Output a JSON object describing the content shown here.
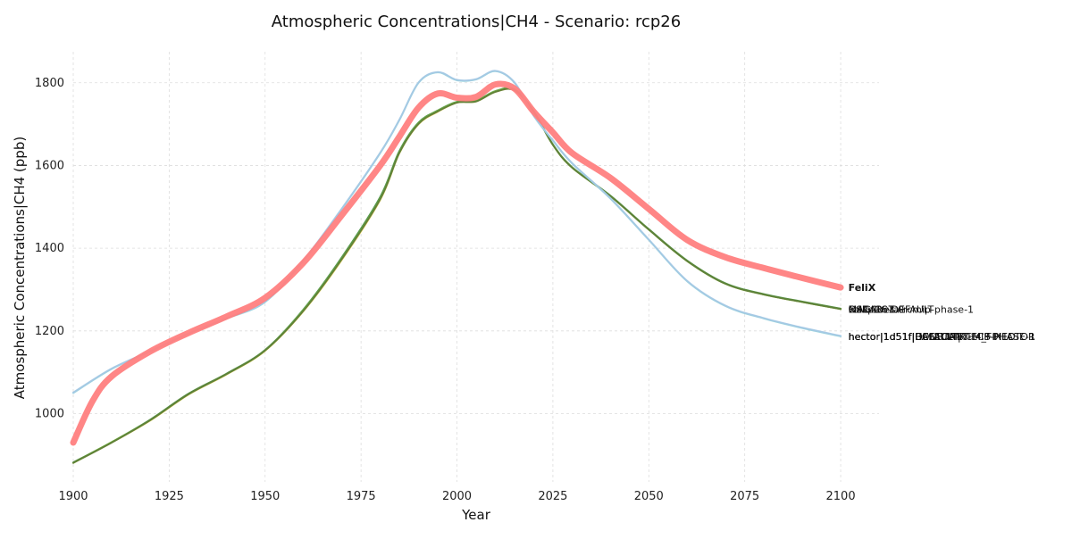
{
  "chart_data": {
    "type": "line",
    "title": "Atmospheric Concentrations|CH4 - Scenario: rcp26",
    "xlabel": "Year",
    "ylabel": "Atmospheric Concentrations|CH4 (ppb)",
    "xlim": [
      1900,
      2110
    ],
    "ylim": [
      835,
      1875
    ],
    "xticks": [
      1900,
      1925,
      1950,
      1975,
      2000,
      2025,
      2050,
      2075,
      2100
    ],
    "yticks": [
      1000,
      1200,
      1400,
      1600,
      1800
    ],
    "grid": true,
    "series": [
      {
        "name": "FaIR-1.6-DEFAULT",
        "color": "#e8c94a",
        "x": [
          1900,
          1910,
          1920,
          1930,
          1940,
          1950,
          1960,
          1970,
          1980,
          1985,
          1990,
          1995,
          2000,
          2005,
          2010,
          2015,
          2020,
          2025,
          2030,
          2040,
          2050,
          2060,
          2070,
          2080,
          2090,
          2100
        ],
        "values": [
          881,
          930,
          983,
          1046,
          1095,
          1152,
          1248,
          1372,
          1517,
          1630,
          1700,
          1730,
          1752,
          1755,
          1778,
          1782,
          1730,
          1650,
          1595,
          1526,
          1445,
          1369,
          1314,
          1288,
          1270,
          1253
        ]
      },
      {
        "name": "MAGICC7",
        "color": "#3a8a3a",
        "x": [
          1900,
          1910,
          1920,
          1930,
          1940,
          1950,
          1960,
          1970,
          1980,
          1985,
          1990,
          1995,
          2000,
          2005,
          2010,
          2015,
          2020,
          2025,
          2030,
          2040,
          2050,
          2060,
          2070,
          2080,
          2090,
          2100
        ],
        "values": [
          882,
          931,
          985,
          1048,
          1097,
          1154,
          1252,
          1378,
          1524,
          1635,
          1704,
          1733,
          1754,
          1757,
          1780,
          1784,
          1731,
          1651,
          1596,
          1527,
          1446,
          1370,
          1315,
          1289,
          1271,
          1254
        ]
      },
      {
        "name": "OSCARv3.0",
        "color": "#8cc63f",
        "x": [
          1900,
          1910,
          1920,
          1930,
          1940,
          1950,
          1960,
          1970,
          1980,
          1985,
          1990,
          1995,
          2000,
          2005,
          2010,
          2015,
          2020,
          2025,
          2030,
          2040,
          2050,
          2060,
          2070,
          2080,
          2090,
          2100
        ],
        "values": [
          881,
          931,
          984,
          1047,
          1096,
          1153,
          1250,
          1375,
          1520,
          1632,
          1702,
          1732,
          1753,
          1756,
          1779,
          1783,
          1730,
          1650,
          1595,
          1526,
          1445,
          1369,
          1314,
          1288,
          1270,
          1253
        ]
      },
      {
        "name": "wasp-beta-rcmip-phase-1",
        "color": "#5a7a3a",
        "x": [
          1900,
          1910,
          1920,
          1930,
          1940,
          1950,
          1960,
          1970,
          1980,
          1985,
          1990,
          1995,
          2000,
          2005,
          2010,
          2015,
          2020,
          2025,
          2030,
          2040,
          2050,
          2060,
          2070,
          2080,
          2090,
          2100
        ],
        "values": [
          881,
          930,
          984,
          1047,
          1096,
          1153,
          1249,
          1374,
          1519,
          1631,
          1701,
          1731,
          1752,
          1755,
          1778,
          1782,
          1730,
          1650,
          1595,
          1526,
          1445,
          1369,
          1314,
          1288,
          1270,
          1253
        ]
      },
      {
        "name": "hector|1d51f|DEFAULT",
        "color": "#8fd3d8",
        "x": [
          1900,
          1910,
          1920,
          1930,
          1940,
          1950,
          1960,
          1970,
          1980,
          1985,
          1990,
          1995,
          2000,
          2005,
          2010,
          2015,
          2020,
          2025,
          2030,
          2040,
          2050,
          2060,
          2070,
          2080,
          2090,
          2100
        ],
        "values": [
          1050,
          1108,
          1150,
          1193,
          1230,
          1270,
          1370,
          1495,
          1630,
          1710,
          1800,
          1825,
          1806,
          1808,
          1828,
          1800,
          1720,
          1660,
          1605,
          1520,
          1420,
          1320,
          1260,
          1230,
          1207,
          1187
        ]
      },
      {
        "name": "hector|1d51f|DEFAULT|CH4_FIXED",
        "color": "#a5c8e4",
        "x": [
          1900,
          1910,
          1920,
          1930,
          1940,
          1950,
          1960,
          1970,
          1980,
          1985,
          1990,
          1995,
          2000,
          2005,
          2010,
          2015,
          2020,
          2025,
          2030,
          2040,
          2050,
          2060,
          2070,
          2080,
          2090,
          2100
        ],
        "values": [
          1051,
          1109,
          1151,
          1194,
          1231,
          1271,
          1371,
          1496,
          1631,
          1711,
          1801,
          1826,
          1807,
          1809,
          1829,
          1801,
          1721,
          1661,
          1606,
          1521,
          1421,
          1321,
          1261,
          1231,
          1208,
          1188
        ]
      },
      {
        "name": "FeliX",
        "color": "#ff7f7f",
        "x": [
          1900,
          1905,
          1910,
          1920,
          1930,
          1940,
          1950,
          1960,
          1970,
          1980,
          1985,
          1990,
          1995,
          2000,
          2005,
          2010,
          2015,
          2020,
          2025,
          2030,
          2040,
          2050,
          2060,
          2070,
          2080,
          2090,
          2100
        ],
        "values": [
          930,
          1030,
          1090,
          1150,
          1195,
          1235,
          1280,
          1365,
          1480,
          1600,
          1670,
          1740,
          1774,
          1764,
          1766,
          1796,
          1786,
          1730,
          1680,
          1630,
          1570,
          1495,
          1420,
          1378,
          1352,
          1328,
          1305
        ]
      }
    ],
    "end_labels": [
      {
        "text": "FeliX",
        "value": 1305,
        "bold": true
      },
      {
        "text": "OSCARv3.0",
        "value": 1253,
        "bold": false
      },
      {
        "text": "MAGICC7",
        "value": 1253,
        "bold": false
      },
      {
        "text": "FaIR-1.6-DEFAULT",
        "value": 1253,
        "bold": false
      },
      {
        "text": "wasp-beta-rcmip-phase-1",
        "value": 1253,
        "bold": false
      },
      {
        "text": "hector|1d51f|DEFAULT",
        "value": 1187,
        "bold": false
      },
      {
        "text": "hector|1d51f|DEFAULT|CH4_FIXED",
        "value": 1187,
        "bold": false
      },
      {
        "text": "hector|1d51f|HECTOR-RCMIP-PHASE-1",
        "value": 1187,
        "bold": false
      },
      {
        "text": "hector|1d51f|BASELINE",
        "value": 1187,
        "bold": false
      },
      {
        "text": "hector|1d51f|CONSTANT-ECS-HECTOR",
        "value": 1187,
        "bold": false
      }
    ]
  }
}
